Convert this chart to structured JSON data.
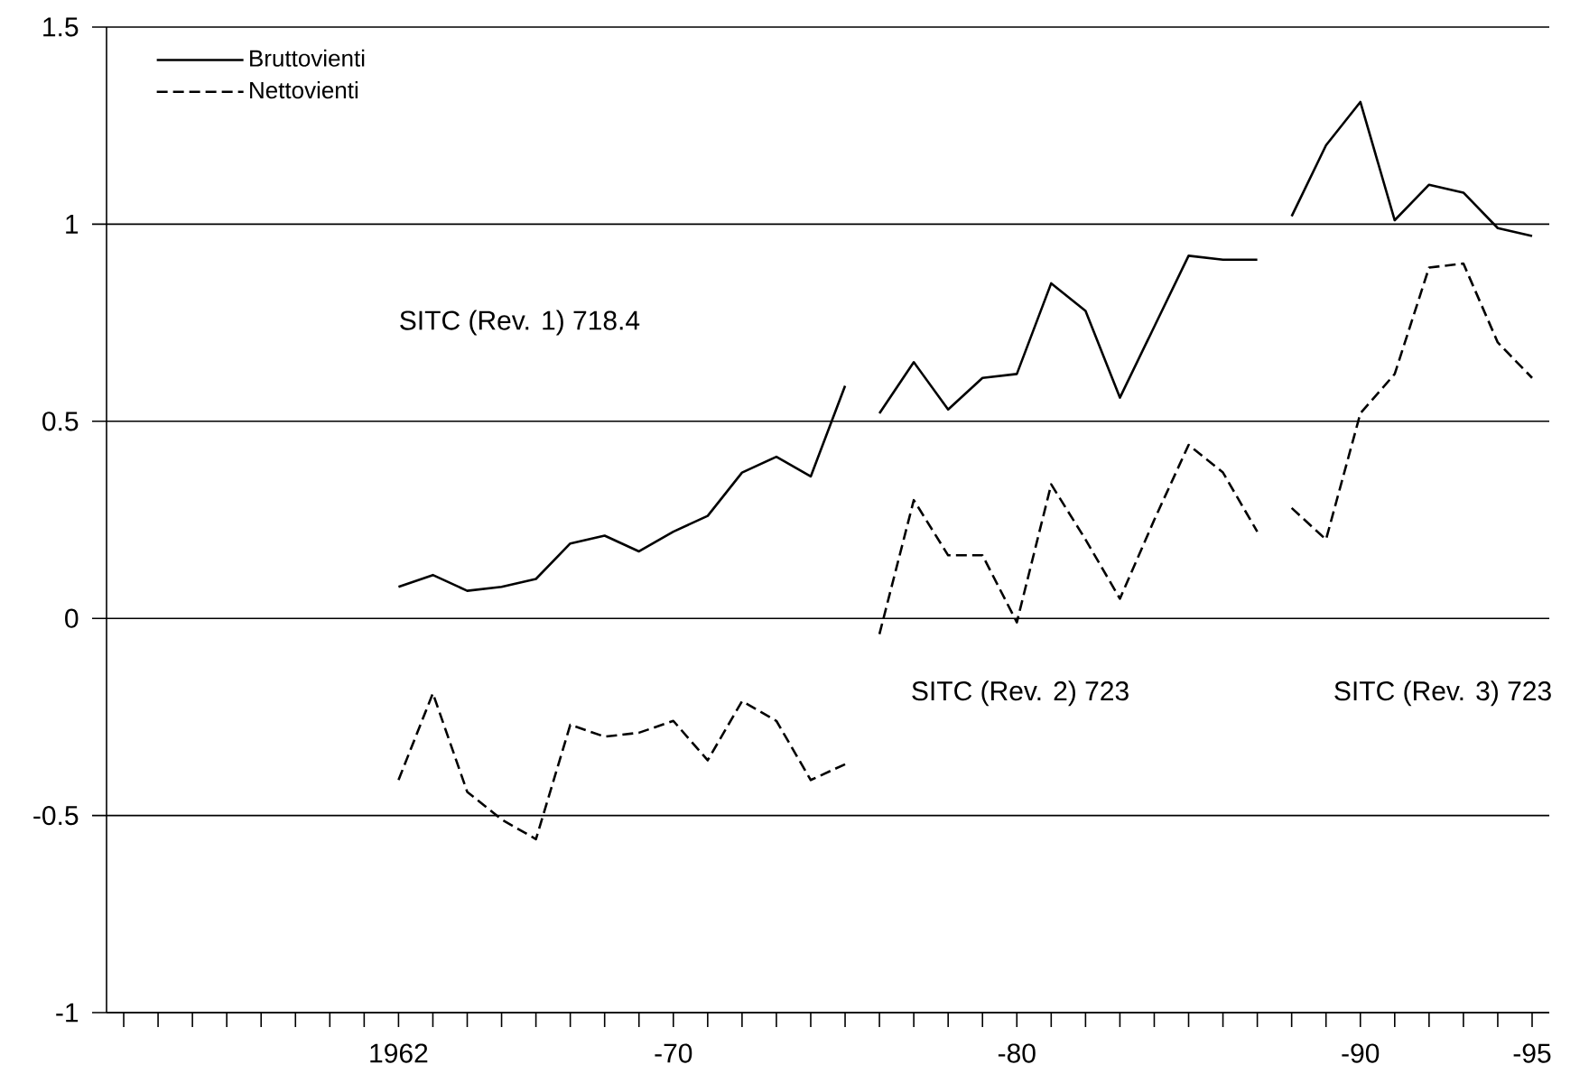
{
  "chart_data": {
    "type": "line",
    "categories": [
      null,
      null,
      null,
      null,
      null,
      null,
      null,
      null,
      "1962",
      null,
      null,
      null,
      null,
      null,
      null,
      null,
      "-70",
      null,
      null,
      null,
      null,
      null,
      null,
      null,
      null,
      null,
      "-80",
      null,
      null,
      null,
      null,
      null,
      null,
      null,
      null,
      null,
      "-90",
      null,
      null,
      null,
      null,
      "-95"
    ],
    "ylim": [
      -1,
      1.5
    ],
    "yticks": [
      {
        "value": -1,
        "label": "-1"
      },
      {
        "value": -0.5,
        "label": "-0.5"
      },
      {
        "value": 0,
        "label": "0"
      },
      {
        "value": 0.5,
        "label": "0.5"
      },
      {
        "value": 1,
        "label": "1"
      },
      {
        "value": 1.5,
        "label": "1.5"
      }
    ],
    "grid": "y",
    "legend": "top left",
    "series": [
      {
        "name": "Bruttovienti",
        "color": "#000000",
        "line_style": "solid",
        "values": [
          null,
          null,
          null,
          null,
          null,
          null,
          null,
          null,
          0.08,
          0.11,
          0.07,
          0.08,
          0.1,
          0.19,
          0.21,
          0.17,
          0.22,
          0.26,
          0.37,
          0.41,
          0.36,
          0.59,
          null,
          null,
          null,
          null,
          null,
          null,
          null,
          null,
          null,
          null,
          null,
          null,
          null,
          null,
          null,
          null,
          null,
          null,
          null,
          null
        ]
      },
      {
        "name": "Nettovienti",
        "color": "#000000",
        "line_style": "dashed",
        "values": [
          null,
          null,
          null,
          null,
          null,
          null,
          null,
          null,
          -0.41,
          -0.19,
          -0.44,
          -0.51,
          -0.56,
          -0.27,
          -0.3,
          -0.29,
          -0.26,
          -0.36,
          -0.21,
          -0.26,
          -0.41,
          -0.37,
          null,
          null,
          null,
          null,
          null,
          null,
          null,
          null,
          null,
          null,
          null,
          null,
          null,
          null,
          null,
          null,
          null,
          null,
          null,
          null
        ]
      },
      {
        "color": "#000000",
        "line_style": "solid",
        "values": [
          null,
          null,
          null,
          null,
          null,
          null,
          null,
          null,
          null,
          null,
          null,
          null,
          null,
          null,
          null,
          null,
          null,
          null,
          null,
          null,
          null,
          null,
          0.52,
          0.65,
          0.53,
          0.61,
          0.62,
          0.85,
          0.78,
          0.56,
          0.74,
          0.92,
          0.91,
          0.91,
          null,
          null,
          null,
          null,
          null,
          null,
          null,
          null
        ]
      },
      {
        "color": "#000000",
        "line_style": "dashed",
        "values": [
          null,
          null,
          null,
          null,
          null,
          null,
          null,
          null,
          null,
          null,
          null,
          null,
          null,
          null,
          null,
          null,
          null,
          null,
          null,
          null,
          null,
          null,
          -0.04,
          0.3,
          0.16,
          0.16,
          -0.01,
          0.34,
          0.2,
          0.05,
          0.25,
          0.44,
          0.37,
          0.22,
          null,
          null,
          null,
          null,
          null,
          null,
          null,
          null
        ]
      },
      {
        "color": "#000000",
        "line_style": "solid",
        "values": [
          null,
          null,
          null,
          null,
          null,
          null,
          null,
          null,
          null,
          null,
          null,
          null,
          null,
          null,
          null,
          null,
          null,
          null,
          null,
          null,
          null,
          null,
          null,
          null,
          null,
          null,
          null,
          null,
          null,
          null,
          null,
          null,
          null,
          null,
          1.02,
          1.2,
          1.31,
          1.01,
          1.1,
          1.08,
          0.99,
          0.97
        ]
      },
      {
        "color": "#000000",
        "line_style": "dashed",
        "values": [
          null,
          null,
          null,
          null,
          null,
          null,
          null,
          null,
          null,
          null,
          null,
          null,
          null,
          null,
          null,
          null,
          null,
          null,
          null,
          null,
          null,
          null,
          null,
          null,
          null,
          null,
          null,
          null,
          null,
          null,
          null,
          null,
          null,
          null,
          0.28,
          0.2,
          0.52,
          0.62,
          0.89,
          0.9,
          0.7,
          0.61
        ]
      }
    ],
    "annotations": [
      "SITC (Rev. 1) 718.4",
      "SITC (Rev. 2) 723",
      "SITC (Rev. 3) 723"
    ]
  }
}
